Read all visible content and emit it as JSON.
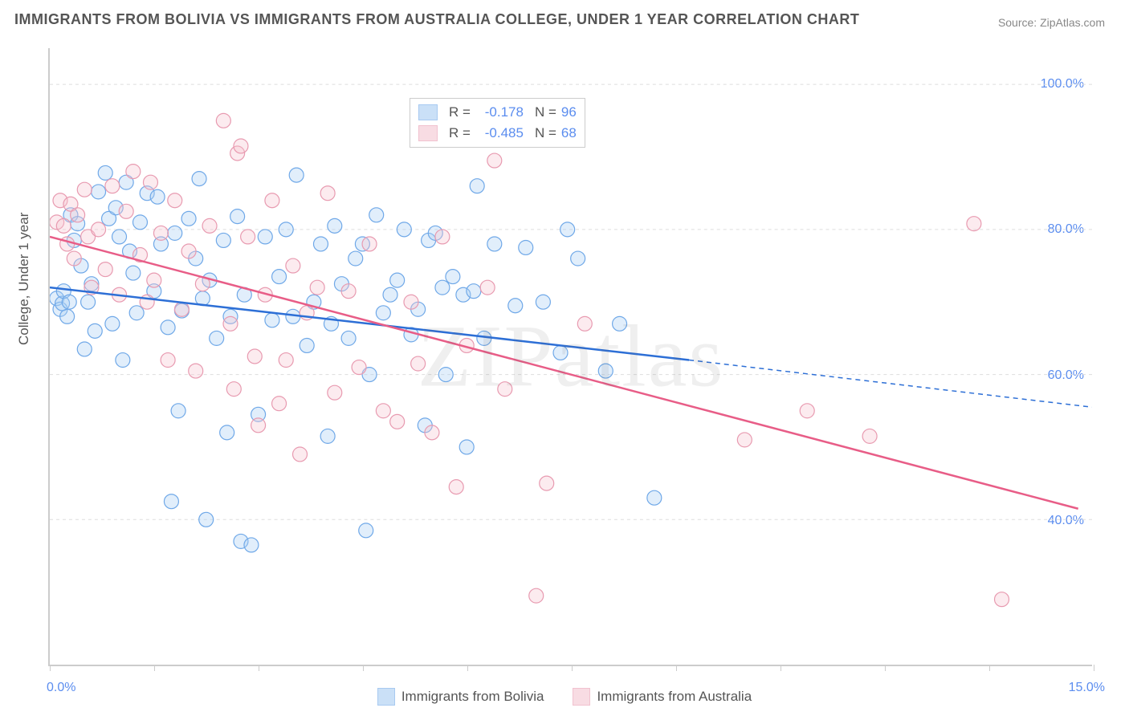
{
  "title": "IMMIGRANTS FROM BOLIVIA VS IMMIGRANTS FROM AUSTRALIA COLLEGE, UNDER 1 YEAR CORRELATION CHART",
  "source_label": "Source: ",
  "source_site": "ZipAtlas.com",
  "y_axis_label": "College, Under 1 year",
  "watermark": "ZIPatlas",
  "chart": {
    "type": "scatter",
    "xlim": [
      0,
      15
    ],
    "x_tick_positions": [
      0,
      1.5,
      3.0,
      4.5,
      6.0,
      7.5,
      9.0,
      10.5,
      12.0,
      13.5,
      15.0
    ],
    "x_tick_labels_shown": {
      "0": "0.0%",
      "15": "15.0%"
    },
    "ylim": [
      20,
      105
    ],
    "y_gridlines": [
      40,
      60,
      80,
      100
    ],
    "y_tick_labels": {
      "40": "40.0%",
      "60": "60.0%",
      "80": "80.0%",
      "100": "100.0%"
    },
    "background_color": "#ffffff",
    "grid_color": "#dddddd",
    "axis_color": "#cccccc",
    "marker_radius": 9,
    "marker_fill_opacity": 0.35,
    "marker_stroke_width": 1.2,
    "series": [
      {
        "name": "Immigrants from Bolivia",
        "color_stroke": "#6fa8e8",
        "color_fill": "#a8cdf3",
        "line_color": "#2d6fd6",
        "R": "-0.178",
        "N": "96",
        "trend": {
          "x1": 0.0,
          "y1": 72.0,
          "x2": 9.2,
          "y2": 62.0
        },
        "trend_extension": {
          "x1": 9.2,
          "y1": 62.0,
          "x2": 15.0,
          "y2": 55.5,
          "dashed": true
        },
        "points": [
          [
            0.1,
            70.5
          ],
          [
            0.15,
            69.0
          ],
          [
            0.18,
            69.8
          ],
          [
            0.2,
            71.5
          ],
          [
            0.25,
            68.0
          ],
          [
            0.28,
            70.0
          ],
          [
            0.3,
            82.0
          ],
          [
            0.35,
            78.5
          ],
          [
            0.4,
            80.8
          ],
          [
            0.45,
            75.0
          ],
          [
            0.5,
            63.5
          ],
          [
            0.55,
            70.0
          ],
          [
            0.6,
            72.5
          ],
          [
            0.65,
            66.0
          ],
          [
            0.7,
            85.2
          ],
          [
            0.8,
            87.8
          ],
          [
            0.85,
            81.5
          ],
          [
            0.9,
            67.0
          ],
          [
            0.95,
            83.0
          ],
          [
            1.0,
            79.0
          ],
          [
            1.05,
            62.0
          ],
          [
            1.1,
            86.5
          ],
          [
            1.15,
            77.0
          ],
          [
            1.2,
            74.0
          ],
          [
            1.25,
            68.5
          ],
          [
            1.3,
            81.0
          ],
          [
            1.4,
            85.0
          ],
          [
            1.5,
            71.5
          ],
          [
            1.55,
            84.5
          ],
          [
            1.6,
            78.0
          ],
          [
            1.7,
            66.5
          ],
          [
            1.75,
            42.5
          ],
          [
            1.8,
            79.5
          ],
          [
            1.85,
            55.0
          ],
          [
            1.9,
            68.8
          ],
          [
            2.0,
            81.5
          ],
          [
            2.1,
            76.0
          ],
          [
            2.15,
            87.0
          ],
          [
            2.2,
            70.5
          ],
          [
            2.25,
            40.0
          ],
          [
            2.3,
            73.0
          ],
          [
            2.4,
            65.0
          ],
          [
            2.5,
            78.5
          ],
          [
            2.55,
            52.0
          ],
          [
            2.6,
            68.0
          ],
          [
            2.7,
            81.8
          ],
          [
            2.75,
            37.0
          ],
          [
            2.8,
            71.0
          ],
          [
            2.9,
            36.5
          ],
          [
            3.0,
            54.5
          ],
          [
            3.1,
            79.0
          ],
          [
            3.2,
            67.5
          ],
          [
            3.3,
            73.5
          ],
          [
            3.4,
            80.0
          ],
          [
            3.5,
            68.0
          ],
          [
            3.55,
            87.5
          ],
          [
            3.7,
            64.0
          ],
          [
            3.8,
            70.0
          ],
          [
            3.9,
            78.0
          ],
          [
            4.0,
            51.5
          ],
          [
            4.05,
            67.0
          ],
          [
            4.1,
            80.5
          ],
          [
            4.2,
            72.5
          ],
          [
            4.3,
            65.0
          ],
          [
            4.4,
            76.0
          ],
          [
            4.5,
            78.0
          ],
          [
            4.55,
            38.5
          ],
          [
            4.7,
            82.0
          ],
          [
            4.8,
            68.5
          ],
          [
            4.9,
            71.0
          ],
          [
            5.0,
            73.0
          ],
          [
            5.1,
            80.0
          ],
          [
            5.2,
            65.5
          ],
          [
            5.3,
            69.0
          ],
          [
            5.45,
            78.5
          ],
          [
            5.55,
            79.5
          ],
          [
            5.65,
            72.0
          ],
          [
            5.8,
            73.5
          ],
          [
            5.95,
            71.0
          ],
          [
            6.1,
            71.5
          ],
          [
            6.15,
            86.0
          ],
          [
            6.25,
            65.0
          ],
          [
            6.4,
            78.0
          ],
          [
            6.7,
            69.5
          ],
          [
            6.85,
            77.5
          ],
          [
            7.1,
            70.0
          ],
          [
            7.35,
            63.0
          ],
          [
            7.45,
            80.0
          ],
          [
            7.6,
            76.0
          ],
          [
            8.0,
            60.5
          ],
          [
            8.2,
            67.0
          ],
          [
            8.7,
            43.0
          ],
          [
            5.4,
            53.0
          ],
          [
            5.7,
            60.0
          ],
          [
            4.6,
            60.0
          ],
          [
            6.0,
            50.0
          ]
        ]
      },
      {
        "name": "Immigrants from Australia",
        "color_stroke": "#e89ab0",
        "color_fill": "#f5c5d2",
        "line_color": "#e85d87",
        "R": "-0.485",
        "N": "68",
        "trend": {
          "x1": 0.0,
          "y1": 79.0,
          "x2": 14.8,
          "y2": 41.5
        },
        "points": [
          [
            0.1,
            81.0
          ],
          [
            0.15,
            84.0
          ],
          [
            0.2,
            80.5
          ],
          [
            0.25,
            78.0
          ],
          [
            0.3,
            83.5
          ],
          [
            0.35,
            76.0
          ],
          [
            0.4,
            82.0
          ],
          [
            0.5,
            85.5
          ],
          [
            0.55,
            79.0
          ],
          [
            0.6,
            72.0
          ],
          [
            0.7,
            80.0
          ],
          [
            0.8,
            74.5
          ],
          [
            0.9,
            86.0
          ],
          [
            1.0,
            71.0
          ],
          [
            1.1,
            82.5
          ],
          [
            1.2,
            88.0
          ],
          [
            1.3,
            76.5
          ],
          [
            1.4,
            70.0
          ],
          [
            1.45,
            86.5
          ],
          [
            1.5,
            73.0
          ],
          [
            1.6,
            79.5
          ],
          [
            1.7,
            62.0
          ],
          [
            1.8,
            84.0
          ],
          [
            1.9,
            69.0
          ],
          [
            2.0,
            77.0
          ],
          [
            2.1,
            60.5
          ],
          [
            2.2,
            72.5
          ],
          [
            2.3,
            80.5
          ],
          [
            2.5,
            95.0
          ],
          [
            2.6,
            67.0
          ],
          [
            2.65,
            58.0
          ],
          [
            2.7,
            90.5
          ],
          [
            2.75,
            91.5
          ],
          [
            2.85,
            79.0
          ],
          [
            2.95,
            62.5
          ],
          [
            3.1,
            71.0
          ],
          [
            3.2,
            84.0
          ],
          [
            3.3,
            56.0
          ],
          [
            3.4,
            62.0
          ],
          [
            3.5,
            75.0
          ],
          [
            3.6,
            49.0
          ],
          [
            3.7,
            68.5
          ],
          [
            3.85,
            72.0
          ],
          [
            4.0,
            85.0
          ],
          [
            4.1,
            57.5
          ],
          [
            4.3,
            71.5
          ],
          [
            4.45,
            61.0
          ],
          [
            4.6,
            78.0
          ],
          [
            4.8,
            55.0
          ],
          [
            5.0,
            53.5
          ],
          [
            5.2,
            70.0
          ],
          [
            5.3,
            61.5
          ],
          [
            5.5,
            52.0
          ],
          [
            5.85,
            44.5
          ],
          [
            6.0,
            64.0
          ],
          [
            6.3,
            72.0
          ],
          [
            6.4,
            89.5
          ],
          [
            6.55,
            58.0
          ],
          [
            7.0,
            29.5
          ],
          [
            7.15,
            45.0
          ],
          [
            7.7,
            67.0
          ],
          [
            10.0,
            51.0
          ],
          [
            10.9,
            55.0
          ],
          [
            11.8,
            51.5
          ],
          [
            13.3,
            80.8
          ],
          [
            13.7,
            29.0
          ],
          [
            5.65,
            79.0
          ],
          [
            3.0,
            53.0
          ]
        ]
      }
    ]
  },
  "colors": {
    "tick_label": "#5b8def",
    "text": "#555555",
    "legend_value": "#5b8def"
  }
}
